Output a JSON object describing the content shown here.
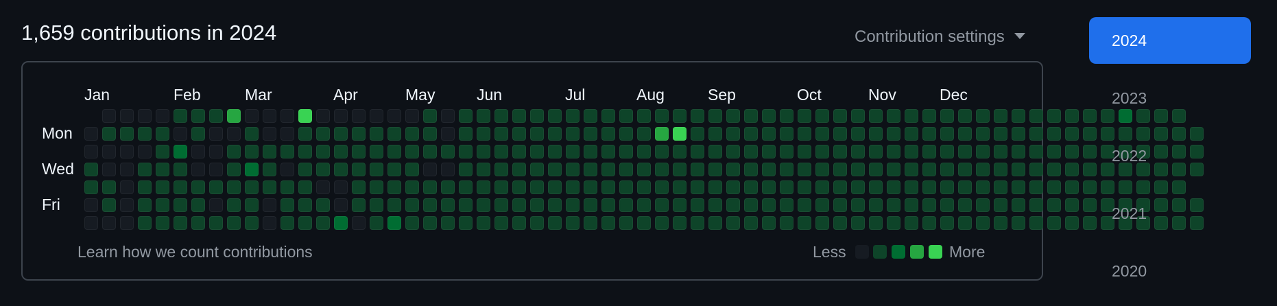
{
  "header": {
    "title": "1,659 contributions in 2024",
    "settings_label": "Contribution settings",
    "settings_icon": "triangle-down-icon"
  },
  "graph": {
    "months": [
      "Jan",
      "Feb",
      "Mar",
      "Apr",
      "May",
      "Jun",
      "Jul",
      "Aug",
      "Sep",
      "Oct",
      "Nov",
      "Dec"
    ],
    "weekday_labels": [
      "Mon",
      "Wed",
      "Fri"
    ],
    "level_colors": [
      "#161b22",
      "#0e4429",
      "#006d32",
      "#26a641",
      "#39d353"
    ],
    "level_rows": [
      "-0000111300040000001011111111111111111111111111111111111112111",
      "011110100100111111110111111111113411111111111111111111111111111",
      "000012001111111111111111111111111111111111111111111111111111111",
      "100111001210111111100111111111111111111111111111111111111111111",
      "11011111111110011111111111111111111111111111111111111111111111-",
      "010111101101110111111111111111111111111111111111111111111111111",
      "000111111101112012111111111111111111111111111111111111111111111"
    ],
    "learn_link": "Learn how we count contributions",
    "legend_less": "Less",
    "legend_more": "More"
  },
  "years": [
    "2024",
    "2023",
    "2022",
    "2021",
    "2020"
  ],
  "selected_year": "2024"
}
